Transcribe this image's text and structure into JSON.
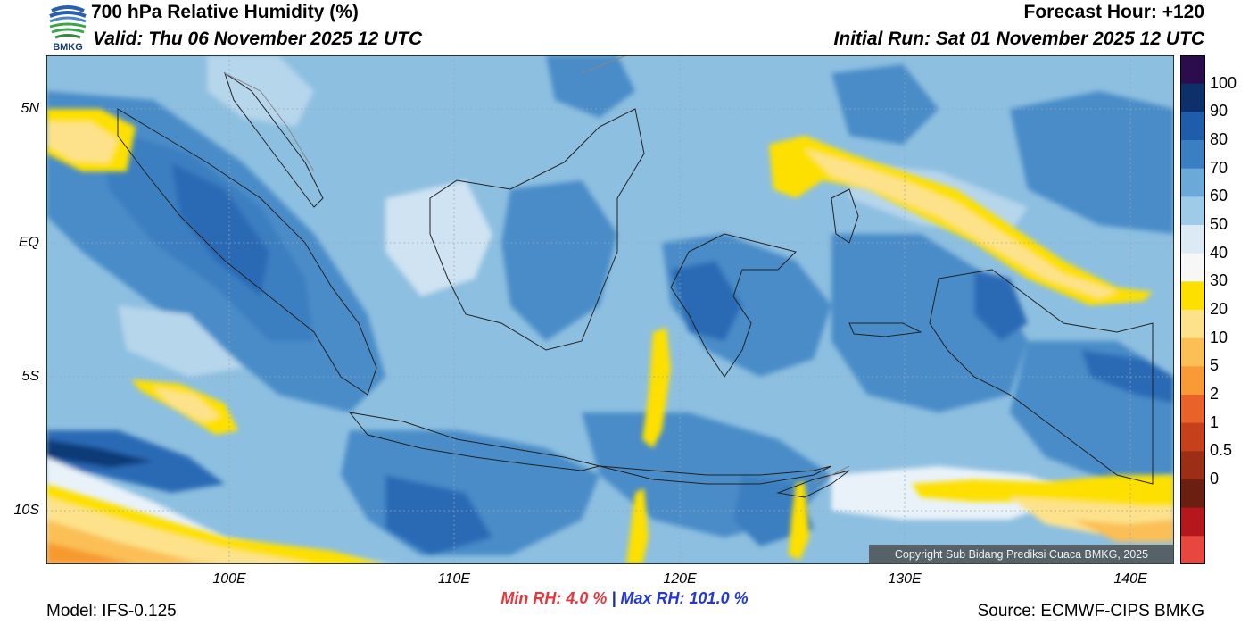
{
  "header": {
    "title": "700 hPa Relative Humidity (%)",
    "valid": "Valid: Thu 06 November 2025 12 UTC",
    "forecast_hour": "Forecast Hour: +120",
    "initial_run": "Initial Run: Sat 01 November 2025 12 UTC",
    "logo_text": "BMKG"
  },
  "map": {
    "lat_labels": [
      "5N",
      "EQ",
      "5S",
      "10S"
    ],
    "lon_labels": [
      "100E",
      "110E",
      "120E",
      "130E",
      "140E"
    ],
    "copyright": "Copyright Sub Bidang Prediksi Cuaca BMKG, 2025",
    "colors": {
      "ocean_base": "#8dbfe0",
      "moist": "#4a8cc8",
      "very_moist": "#2c6bb5",
      "saturated": "#0e3b78",
      "dry_yellow": "#fde000",
      "dry_light": "#fde28b",
      "dry_orange": "#fbbf55",
      "very_dry": "#f79a2e",
      "border": "#222222"
    }
  },
  "colorbar": {
    "labels": [
      "100",
      "90",
      "80",
      "70",
      "60",
      "50",
      "40",
      "30",
      "20",
      "10",
      "5",
      "2",
      "1",
      "0.5",
      "0"
    ],
    "colors": [
      "#2b0d4e",
      "#0d2f6a",
      "#1f5cab",
      "#3a7fc1",
      "#6ba9d8",
      "#9ecbe7",
      "#dbeaf5",
      "#f7f7f7",
      "#fde000",
      "#fde28b",
      "#fbbf55",
      "#f99a36",
      "#e8622a",
      "#c6401c",
      "#9b2e14",
      "#6b1f10",
      "#b5171d",
      "#e8473f"
    ]
  },
  "footer": {
    "min_rh_label": "Min RH:",
    "min_rh_value": "4.0 %",
    "separator": "|",
    "max_rh_label": "Max RH:",
    "max_rh_value": "101.0 %",
    "model": "Model: IFS-0.125",
    "source": "Source: ECMWF-CIPS BMKG"
  }
}
